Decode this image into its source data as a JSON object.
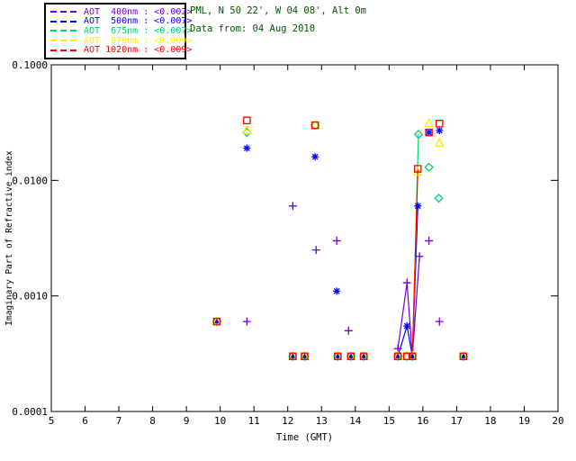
{
  "header": {
    "site_line": "PML, N 50 22', W 04 08', Alt 0m",
    "date_line": "Data from: 04 Aug 2010",
    "text_color": "#005500"
  },
  "legend": {
    "entries": [
      {
        "text": "AOT  400nm : <0.002>",
        "wavelength": "400nm",
        "avg_value": "<0.002>",
        "color": "#7000D8"
      },
      {
        "text": "AOT  500nm : <0.007>",
        "wavelength": "500nm",
        "avg_value": "<0.007>",
        "color": "#0000FF"
      },
      {
        "text": "AOT  675nm : <0.007>",
        "wavelength": "675nm",
        "avg_value": "<0.007>",
        "color": "#00D26E"
      },
      {
        "text": "AOT  870nm : <0.009>",
        "wavelength": "870nm",
        "avg_value": "<0.009>",
        "color": "#F2F200"
      },
      {
        "text": "AOT 1020nm : <0.009>",
        "wavelength": "1020nm",
        "avg_value": "<0.009>",
        "color": "#FF0000"
      }
    ]
  },
  "chart_data": {
    "type": "scatter",
    "title": "",
    "xlabel": "Time (GMT)",
    "ylabel": "Imaginary Part of Refractive index",
    "xlim": [
      5,
      20
    ],
    "ylim": [
      0.0001,
      0.1
    ],
    "yscale": "log",
    "grid": false,
    "legend_position": "top-left-outside",
    "xticks": [
      5,
      6,
      7,
      8,
      9,
      10,
      11,
      12,
      13,
      14,
      15,
      16,
      17,
      18,
      19,
      20
    ],
    "yticks": [
      {
        "value": 0.1,
        "label": "0.1000"
      },
      {
        "value": 0.01,
        "label": "0.0100"
      },
      {
        "value": 0.001,
        "label": "0.0010"
      },
      {
        "value": 0.0001,
        "label": "0.0001"
      }
    ],
    "series": [
      {
        "name": "AOT 400nm",
        "color": "#7000D8",
        "marker": "plus",
        "points": [
          [
            9.9,
            0.0006
          ],
          [
            10.79,
            0.0006
          ],
          [
            12.15,
            0.006
          ],
          [
            12.15,
            0.0003
          ],
          [
            12.5,
            0.0003
          ],
          [
            12.84,
            0.0025
          ],
          [
            13.45,
            0.003
          ],
          [
            13.48,
            0.0003
          ],
          [
            13.8,
            0.0005
          ],
          [
            13.87,
            0.0003
          ],
          [
            14.25,
            0.0003
          ],
          [
            15.26,
            0.00035
          ],
          [
            15.53,
            0.0013
          ],
          [
            15.69,
            0.0003
          ],
          [
            15.9,
            0.0022
          ],
          [
            16.18,
            0.003
          ],
          [
            16.49,
            0.0006
          ],
          [
            17.2,
            0.0003
          ]
        ],
        "lines": [
          [
            [
              15.26,
              0.00035
            ],
            [
              15.53,
              0.0013
            ],
            [
              15.69,
              0.0003
            ],
            [
              15.9,
              0.0022
            ]
          ]
        ]
      },
      {
        "name": "AOT 500nm",
        "color": "#0000FF",
        "marker": "asterisk",
        "points": [
          [
            9.9,
            0.0006
          ],
          [
            10.79,
            0.019
          ],
          [
            12.15,
            0.0003
          ],
          [
            12.5,
            0.0003
          ],
          [
            12.81,
            0.016
          ],
          [
            13.45,
            0.0011
          ],
          [
            13.48,
            0.0003
          ],
          [
            13.87,
            0.0003
          ],
          [
            14.25,
            0.0003
          ],
          [
            15.26,
            0.0003
          ],
          [
            15.53,
            0.00055
          ],
          [
            15.69,
            0.0003
          ],
          [
            15.85,
            0.006
          ],
          [
            16.18,
            0.026
          ],
          [
            16.49,
            0.027
          ],
          [
            17.2,
            0.0003
          ]
        ],
        "lines": [
          [
            [
              15.26,
              0.0003
            ],
            [
              15.53,
              0.00055
            ],
            [
              15.69,
              0.0003
            ],
            [
              15.85,
              0.006
            ]
          ]
        ]
      },
      {
        "name": "AOT 675nm",
        "color": "#00D26E",
        "marker": "diamond",
        "points": [
          [
            9.9,
            0.0006
          ],
          [
            10.79,
            0.026
          ],
          [
            12.15,
            0.0003
          ],
          [
            12.5,
            0.0003
          ],
          [
            12.81,
            0.03
          ],
          [
            13.48,
            0.0003
          ],
          [
            13.87,
            0.0003
          ],
          [
            14.25,
            0.0003
          ],
          [
            15.26,
            0.0003
          ],
          [
            15.53,
            0.0003
          ],
          [
            15.69,
            0.0003
          ],
          [
            15.87,
            0.025
          ],
          [
            16.18,
            0.013
          ],
          [
            16.47,
            0.007
          ],
          [
            17.2,
            0.0003
          ]
        ],
        "lines": [
          [
            [
              15.69,
              0.0003
            ],
            [
              15.87,
              0.025
            ]
          ]
        ]
      },
      {
        "name": "AOT 870nm",
        "color": "#F2F200",
        "marker": "triangle",
        "points": [
          [
            9.9,
            0.0006
          ],
          [
            10.79,
            0.027
          ],
          [
            12.15,
            0.0003
          ],
          [
            12.5,
            0.0003
          ],
          [
            12.81,
            0.03
          ],
          [
            13.48,
            0.0003
          ],
          [
            13.87,
            0.0003
          ],
          [
            14.25,
            0.0003
          ],
          [
            15.26,
            0.0003
          ],
          [
            15.53,
            0.0003
          ],
          [
            15.69,
            0.0003
          ],
          [
            15.85,
            0.0118
          ],
          [
            16.18,
            0.031
          ],
          [
            16.49,
            0.021
          ],
          [
            17.2,
            0.0003
          ]
        ],
        "lines": [
          [
            [
              15.69,
              0.0003
            ],
            [
              15.85,
              0.0118
            ]
          ]
        ]
      },
      {
        "name": "AOT 1020nm",
        "color": "#FF0000",
        "marker": "square",
        "points": [
          [
            9.9,
            0.0006
          ],
          [
            10.79,
            0.033
          ],
          [
            12.15,
            0.0003
          ],
          [
            12.5,
            0.0003
          ],
          [
            12.81,
            0.03
          ],
          [
            13.48,
            0.0003
          ],
          [
            13.87,
            0.0003
          ],
          [
            14.25,
            0.0003
          ],
          [
            15.26,
            0.0003
          ],
          [
            15.53,
            0.0003
          ],
          [
            15.69,
            0.0003
          ],
          [
            15.85,
            0.0126
          ],
          [
            16.18,
            0.026
          ],
          [
            16.49,
            0.031
          ],
          [
            17.2,
            0.0003
          ]
        ],
        "lines": [
          [
            [
              15.69,
              0.0003
            ],
            [
              15.85,
              0.0126
            ]
          ]
        ]
      }
    ]
  }
}
